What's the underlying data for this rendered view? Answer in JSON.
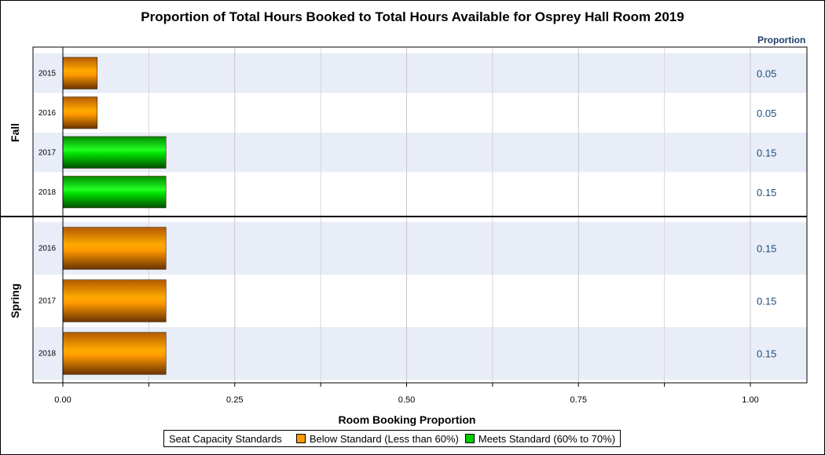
{
  "chart_data": {
    "type": "bar",
    "orientation": "horizontal",
    "title": "Proportion of Total Hours Booked to Total Hours Available for Osprey Hall Room 2019",
    "xlabel": "Room Booking Proportion",
    "xlim": [
      0,
      1
    ],
    "xticks": [
      "0.00",
      "0.25",
      "0.50",
      "0.75",
      "1.00"
    ],
    "grid": true,
    "stat_column_header": "Proportion",
    "groups": [
      {
        "name": "Fall",
        "categories": [
          "2015",
          "2016",
          "2017",
          "2018"
        ],
        "values": [
          0.05,
          0.05,
          0.15,
          0.15
        ],
        "value_labels": [
          "0.05",
          "0.05",
          "0.15",
          "0.15"
        ],
        "standard": [
          "Below Standard (Less than 60%)",
          "Below Standard (Less than 60%)",
          "Meets Standard (60% to 70%)",
          "Meets Standard (60% to 70%)"
        ]
      },
      {
        "name": "Spring",
        "categories": [
          "2016",
          "2017",
          "2018"
        ],
        "values": [
          0.15,
          0.15,
          0.15
        ],
        "value_labels": [
          "0.15",
          "0.15",
          "0.15"
        ],
        "standard": [
          "Below Standard (Less than 60%)",
          "Below Standard (Less than 60%)",
          "Below Standard (Less than 60%)"
        ]
      }
    ],
    "legend": {
      "title": "Seat Capacity Standards",
      "placement": "bottom",
      "items": [
        {
          "label": "Below Standard (Less than 60%)",
          "color": "#ff9900"
        },
        {
          "label": "Meets Standard (60% to 70%)",
          "color": "#00cc00"
        }
      ]
    }
  }
}
